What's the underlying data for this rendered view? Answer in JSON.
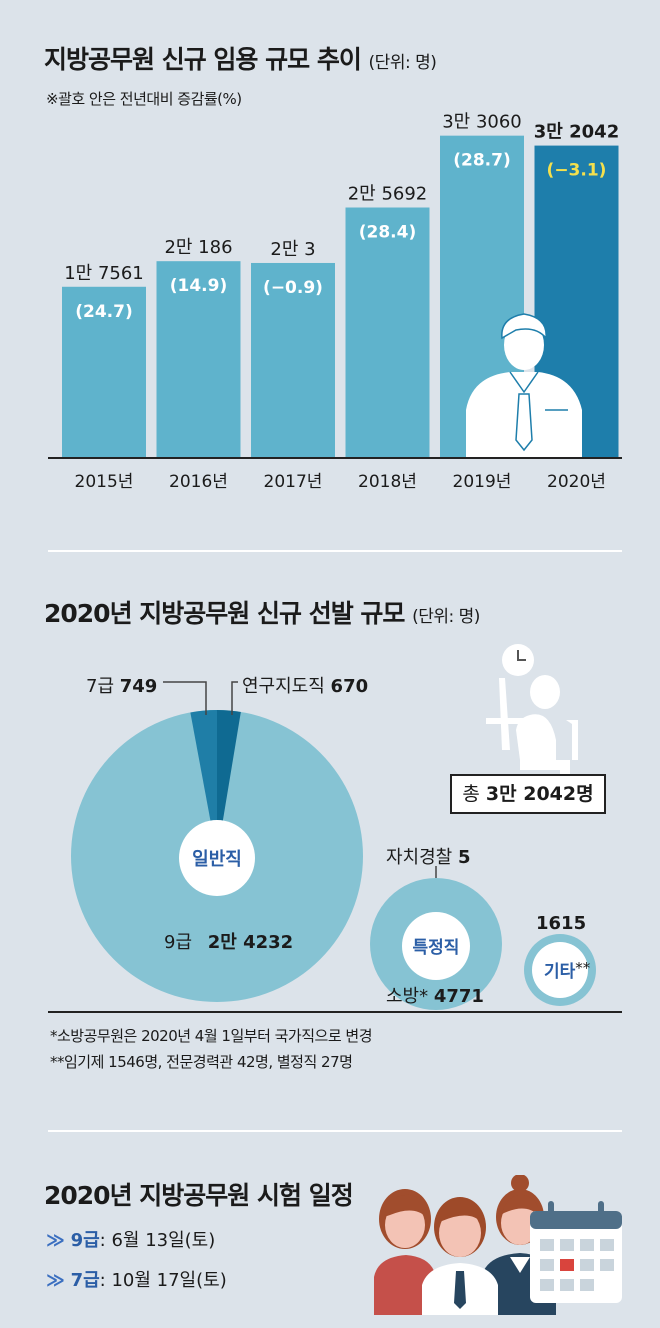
{
  "section1": {
    "title": "지방공무원 신규 임용 규모 추이",
    "unit": "(단위: 명)",
    "note": "※괄호 안은 전년대비 증감률(%)"
  },
  "chart_data": [
    {
      "type": "bar",
      "title": "지방공무원 신규 임용 규모 추이",
      "unit": "(단위: 명)",
      "note": "※괄호 안은 전년대비 증감률(%)",
      "categories": [
        "2015년",
        "2016년",
        "2017년",
        "2018년",
        "2019년",
        "2020년"
      ],
      "values": [
        17561,
        20186,
        20003,
        25692,
        33060,
        32042
      ],
      "value_labels": [
        "1만 7561",
        "2만 186",
        "2만 3",
        "2만 5692",
        "3만 3060",
        "3만 2042"
      ],
      "change_labels": [
        "(24.7)",
        "(14.9)",
        "(−0.9)",
        "(28.4)",
        "(28.7)",
        "(−3.1)"
      ],
      "colors": {
        "bar": "#5fb3cc",
        "highlight": "#1e7eab",
        "change_highlight": "#f4e04d"
      }
    },
    {
      "type": "pie",
      "title": "2020년 지방공무원 신규 선발 규모",
      "unit": "(단위: 명)",
      "total_label": "총",
      "total_value": "3만 2042명",
      "groups": [
        {
          "name": "일반직",
          "slices": [
            {
              "label": "9급",
              "value_label": "2만 4232",
              "value": 24232
            },
            {
              "label": "7급",
              "value_label": "749",
              "value": 749
            },
            {
              "label": "연구지도직",
              "value_label": "670",
              "value": 670
            }
          ]
        },
        {
          "name": "특정직",
          "slices": [
            {
              "label": "자치경찰",
              "value_label": "5",
              "value": 5
            },
            {
              "label": "소방*",
              "value_label": "4771",
              "value": 4771
            }
          ]
        },
        {
          "name": "기타",
          "mark": "**",
          "slices": [
            {
              "label": "",
              "value_label": "1615",
              "value": 1615
            }
          ]
        }
      ],
      "footnotes": [
        "*소방공무원은 2020년 4월 1일부터 국가직으로 변경",
        "**임기제 1546명, 전문경력관 42명, 별정직 27명"
      ],
      "colors": {
        "main": "#86c3d3",
        "dark": "#1f7ea7",
        "darker": "#0f6a92",
        "text_blue": "#2b5ea6"
      }
    }
  ],
  "section3": {
    "title": "2020년 지방공무원 시험 일정",
    "items": [
      {
        "grade": "9급",
        "date": ": 6월 13일(토)"
      },
      {
        "grade": "7급",
        "date": ": 10월 17일(토)"
      }
    ]
  }
}
